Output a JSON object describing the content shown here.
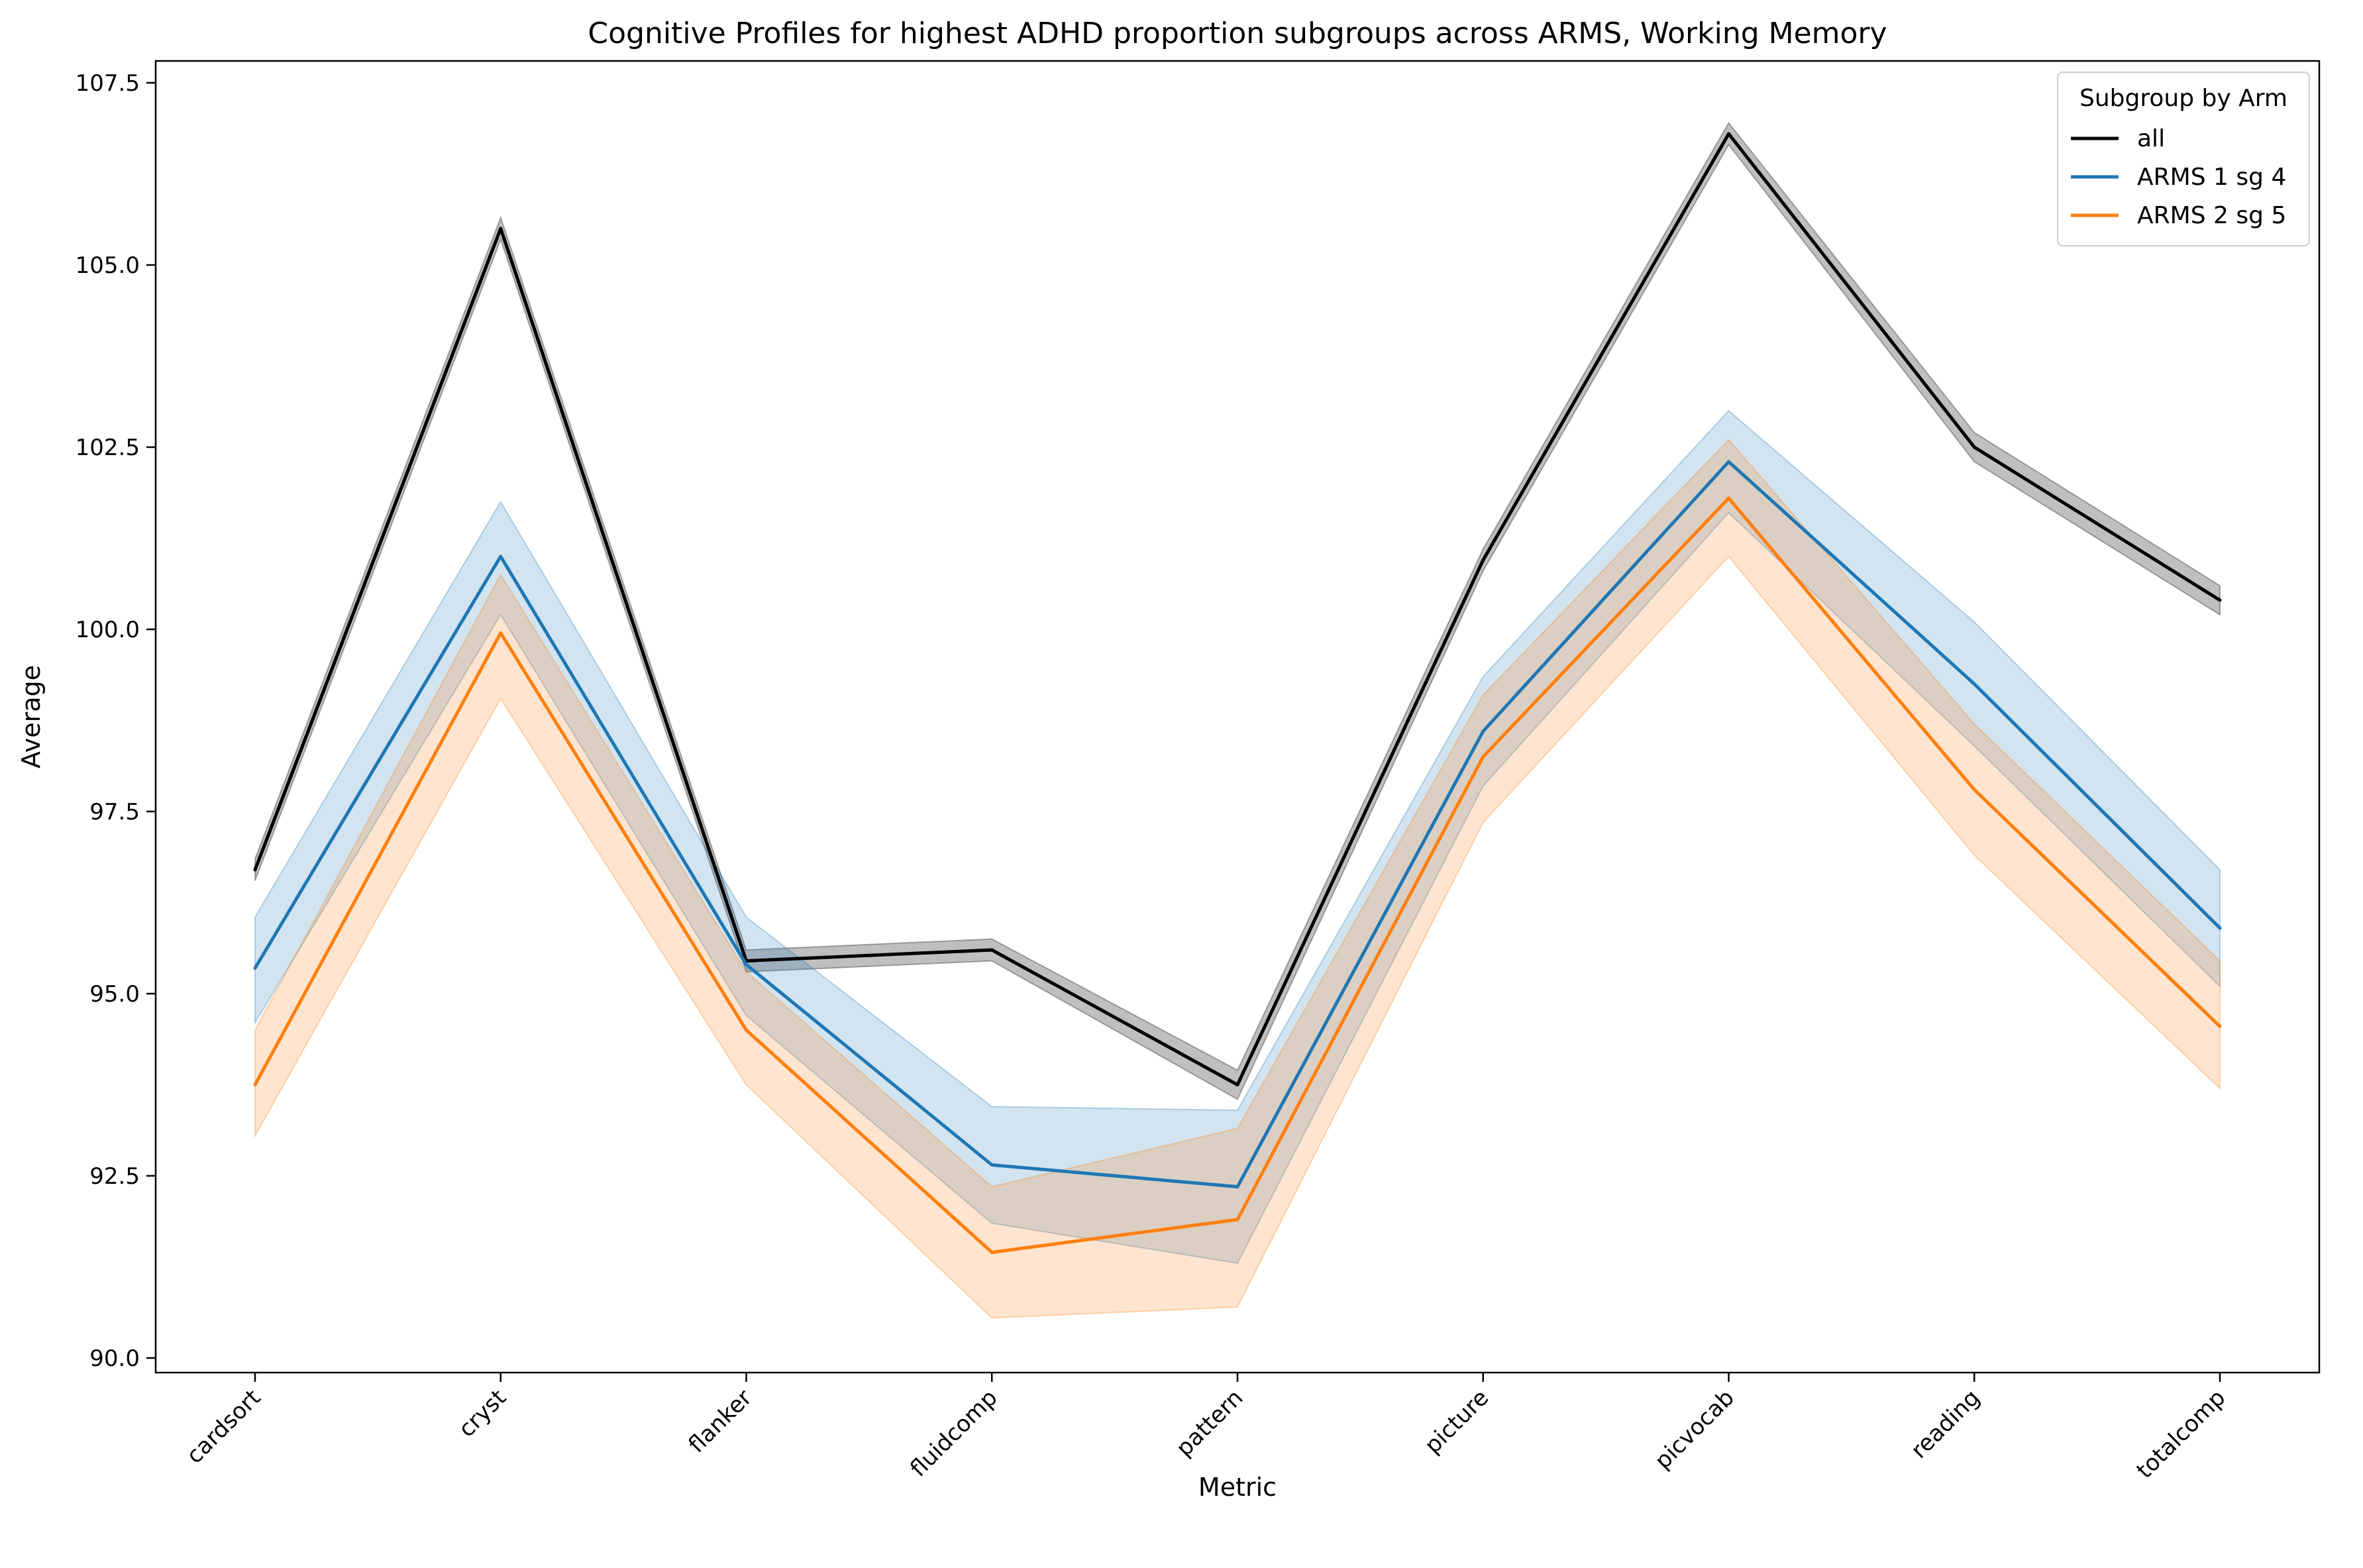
{
  "chart_data": {
    "type": "line",
    "title": "Cognitive Profiles for highest ADHD proportion subgroups across ARMS, Working Memory",
    "xlabel": "Metric",
    "ylabel": "Average",
    "ylim": [
      89.8,
      107.8
    ],
    "yticks": [
      90.0,
      92.5,
      95.0,
      97.5,
      100.0,
      102.5,
      105.0,
      107.5
    ],
    "ytick_labels": [
      "90.0",
      "92.5",
      "95.0",
      "97.5",
      "100.0",
      "102.5",
      "105.0",
      "107.5"
    ],
    "categories": [
      "cardsort",
      "cryst",
      "flanker",
      "fluidcomp",
      "pattern",
      "picture",
      "picvocab",
      "reading",
      "totalcomp"
    ],
    "grid": false,
    "legend": {
      "title": "Subgroup by Arm",
      "placement": "top-right"
    },
    "series": [
      {
        "name": "all",
        "color": "#000000",
        "values": [
          96.7,
          105.5,
          95.45,
          95.6,
          93.75,
          100.95,
          106.8,
          102.5,
          100.4
        ],
        "lower": [
          96.55,
          105.35,
          95.3,
          95.45,
          93.55,
          100.8,
          106.65,
          102.3,
          100.2
        ],
        "upper": [
          96.85,
          105.65,
          95.6,
          95.75,
          93.95,
          101.1,
          106.95,
          102.7,
          100.6
        ]
      },
      {
        "name": "ARMS 1 sg 4",
        "color": "#1f77b4",
        "values": [
          95.35,
          101.0,
          95.4,
          92.65,
          92.35,
          98.6,
          102.3,
          99.25,
          95.9
        ],
        "lower": [
          94.6,
          100.2,
          94.7,
          91.85,
          91.3,
          97.85,
          101.6,
          98.4,
          95.1
        ],
        "upper": [
          96.05,
          101.75,
          96.05,
          93.45,
          93.4,
          99.35,
          103.0,
          100.1,
          96.7
        ]
      },
      {
        "name": "ARMS 2 sg 5",
        "color": "#ff7f0e",
        "values": [
          93.75,
          99.95,
          94.5,
          91.45,
          91.9,
          98.25,
          101.8,
          97.8,
          94.55
        ],
        "lower": [
          93.05,
          99.05,
          93.75,
          90.55,
          90.7,
          97.35,
          101.0,
          96.9,
          93.7
        ],
        "upper": [
          94.5,
          100.75,
          95.3,
          92.35,
          93.15,
          99.1,
          102.6,
          98.7,
          95.45
        ]
      }
    ]
  }
}
